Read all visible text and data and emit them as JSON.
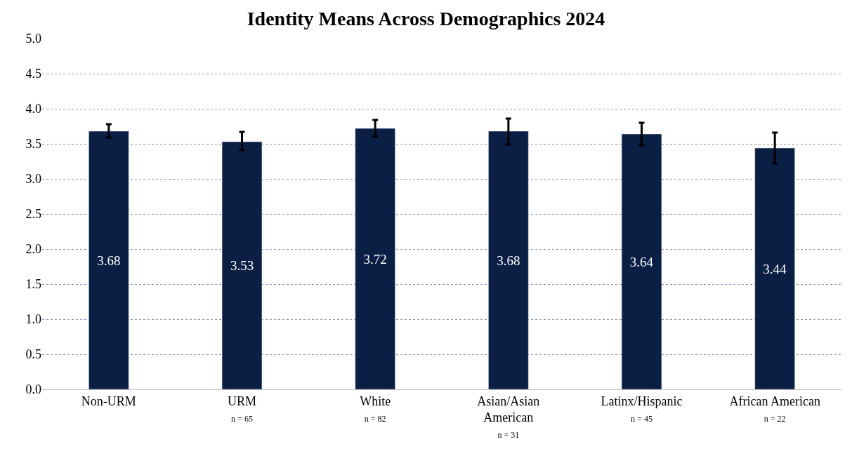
{
  "chart_data": {
    "type": "bar",
    "title": "Identity Means Across Demographics 2024",
    "categories": [
      "Non-URM",
      "URM\nn = 65",
      "White\nn = 82",
      "Asian/Asian\nAmerican\nn = 31",
      "Latinx/Hispanic\nn = 45",
      "African American\nn = 22"
    ],
    "values": [
      3.68,
      3.53,
      3.72,
      3.68,
      3.64,
      3.44
    ],
    "errors": [
      [
        3.59,
        3.78
      ],
      [
        3.41,
        3.67
      ],
      [
        3.6,
        3.84
      ],
      [
        3.49,
        3.86
      ],
      [
        3.48,
        3.8
      ],
      [
        3.22,
        3.66
      ]
    ],
    "color": "#0b1f45",
    "ylim": [
      0,
      5
    ],
    "yticks": [
      {
        "value": 0,
        "label": "0.0"
      },
      {
        "value": 0.5,
        "label": "0.5"
      },
      {
        "value": 1,
        "label": "1.0"
      },
      {
        "value": 1.5,
        "label": "1.5"
      },
      {
        "value": 2,
        "label": "2.0"
      },
      {
        "value": 2.5,
        "label": "2.5"
      },
      {
        "value": 3,
        "label": "3.0"
      },
      {
        "value": 3.5,
        "label": "3.5"
      },
      {
        "value": 4,
        "label": "4.0"
      },
      {
        "value": 4.5,
        "label": "4.5"
      },
      {
        "value": 5,
        "label": "5.0"
      }
    ],
    "grid": "y",
    "data_labels": true,
    "legend": false
  }
}
